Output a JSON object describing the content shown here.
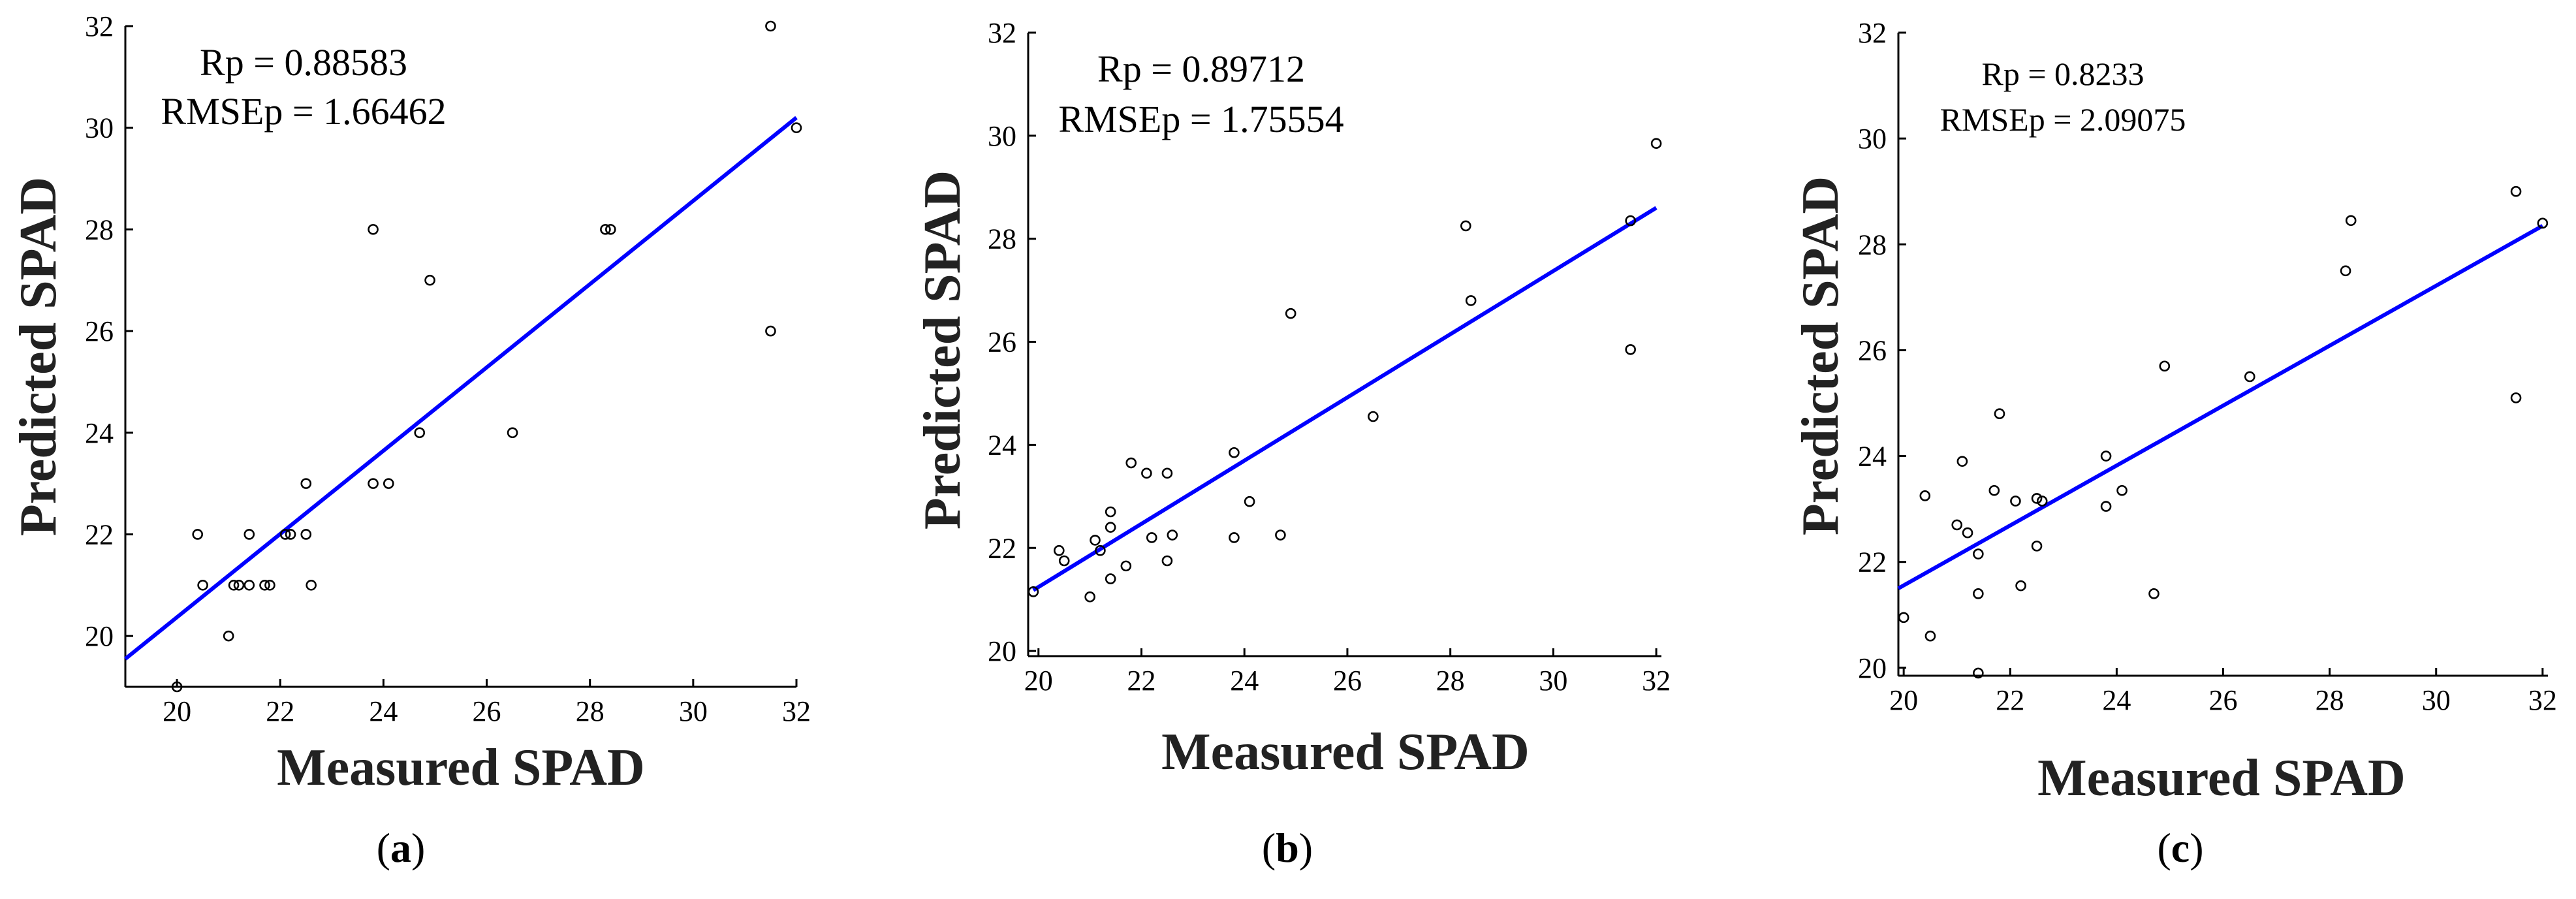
{
  "chart_data": [
    {
      "type": "scatter",
      "panel_label": {
        "open": "(",
        "letter": "a",
        "close": ")"
      },
      "xlabel": "Measured SPAD",
      "ylabel": "Predicted SPAD",
      "xlim": [
        19,
        32
      ],
      "ylim": [
        19,
        32
      ],
      "xticks": [
        20,
        22,
        24,
        26,
        28,
        30,
        32
      ],
      "yticks": [
        20,
        22,
        24,
        26,
        28,
        30,
        32
      ],
      "annotations": {
        "rp": "Rp = 0.88583",
        "rmse": "RMSEp = 1.66462"
      },
      "fit_line": {
        "x": [
          19,
          32
        ],
        "y": [
          19.55,
          30.2
        ],
        "color": "#0000ff"
      },
      "points": [
        [
          20.0,
          19.0
        ],
        [
          20.4,
          22.0
        ],
        [
          20.5,
          21.0
        ],
        [
          21.0,
          20.0
        ],
        [
          21.1,
          21.0
        ],
        [
          21.2,
          21.0
        ],
        [
          21.4,
          21.0
        ],
        [
          21.4,
          22.0
        ],
        [
          21.7,
          21.0
        ],
        [
          21.8,
          21.0
        ],
        [
          22.1,
          22.0
        ],
        [
          22.2,
          22.0
        ],
        [
          22.5,
          22.0
        ],
        [
          22.5,
          23.0
        ],
        [
          22.6,
          21.0
        ],
        [
          23.8,
          28.0
        ],
        [
          23.8,
          23.0
        ],
        [
          24.1,
          23.0
        ],
        [
          24.7,
          24.0
        ],
        [
          24.9,
          27.0
        ],
        [
          26.5,
          24.0
        ],
        [
          28.3,
          28.0
        ],
        [
          28.4,
          28.0
        ],
        [
          31.5,
          32.0
        ],
        [
          31.5,
          26.0
        ],
        [
          32.0,
          30.0
        ]
      ]
    },
    {
      "type": "scatter",
      "panel_label": {
        "open": "(",
        "letter": "b",
        "close": ")"
      },
      "xlabel": "Measured SPAD",
      "ylabel": "Predicted SPAD",
      "xlim": [
        19.8,
        32.1
      ],
      "ylim": [
        19.9,
        32
      ],
      "xticks": [
        20,
        22,
        24,
        26,
        28,
        30,
        32
      ],
      "yticks": [
        20,
        22,
        24,
        26,
        28,
        30,
        32
      ],
      "annotations": {
        "rp": "Rp = 0.89712",
        "rmse": "RMSEp = 1.75554"
      },
      "fit_line": {
        "x": [
          19.9,
          32.0
        ],
        "y": [
          21.18,
          28.6
        ],
        "color": "#0000ff"
      },
      "points": [
        [
          19.9,
          21.15
        ],
        [
          20.4,
          21.95
        ],
        [
          20.5,
          21.75
        ],
        [
          21.0,
          21.05
        ],
        [
          21.1,
          22.15
        ],
        [
          21.2,
          21.95
        ],
        [
          21.4,
          21.4
        ],
        [
          21.4,
          22.4
        ],
        [
          21.4,
          22.7
        ],
        [
          21.7,
          21.65
        ],
        [
          21.8,
          23.65
        ],
        [
          22.1,
          23.45
        ],
        [
          22.2,
          22.2
        ],
        [
          22.5,
          21.75
        ],
        [
          22.5,
          23.45
        ],
        [
          22.6,
          22.25
        ],
        [
          23.8,
          23.85
        ],
        [
          23.8,
          22.2
        ],
        [
          24.1,
          22.9
        ],
        [
          24.7,
          22.25
        ],
        [
          24.9,
          26.55
        ],
        [
          26.5,
          24.55
        ],
        [
          28.3,
          28.25
        ],
        [
          28.4,
          26.8
        ],
        [
          31.5,
          28.35
        ],
        [
          31.5,
          25.85
        ],
        [
          32.0,
          29.85
        ]
      ]
    },
    {
      "type": "scatter",
      "panel_label": {
        "open": "(",
        "letter": "c",
        "close": ")"
      },
      "xlabel": "Measured SPAD",
      "ylabel": "Predicted SPAD",
      "xlim": [
        19.9,
        32.1
      ],
      "ylim": [
        19.85,
        32
      ],
      "xticks": [
        20,
        22,
        24,
        26,
        28,
        30,
        32
      ],
      "yticks": [
        20,
        22,
        24,
        26,
        28,
        30,
        32
      ],
      "annotations": {
        "rp": "Rp = 0.8233",
        "rmse": "RMSEp = 2.09075"
      },
      "fit_line": {
        "x": [
          19.9,
          32.0
        ],
        "y": [
          21.5,
          28.35
        ],
        "color": "#0000ff"
      },
      "points": [
        [
          20.0,
          20.95
        ],
        [
          20.4,
          23.25
        ],
        [
          20.5,
          20.6
        ],
        [
          21.0,
          22.7
        ],
        [
          21.1,
          23.9
        ],
        [
          21.2,
          22.55
        ],
        [
          21.4,
          19.9
        ],
        [
          21.4,
          21.4
        ],
        [
          21.4,
          22.15
        ],
        [
          21.7,
          23.35
        ],
        [
          21.8,
          24.8
        ],
        [
          22.1,
          23.15
        ],
        [
          22.2,
          21.55
        ],
        [
          22.5,
          22.3
        ],
        [
          22.5,
          23.2
        ],
        [
          22.6,
          23.15
        ],
        [
          23.8,
          24.0
        ],
        [
          23.8,
          23.05
        ],
        [
          24.1,
          23.35
        ],
        [
          24.7,
          21.4
        ],
        [
          24.9,
          25.7
        ],
        [
          26.5,
          25.5
        ],
        [
          28.3,
          27.5
        ],
        [
          28.4,
          28.45
        ],
        [
          31.5,
          29.0
        ],
        [
          31.5,
          25.1
        ],
        [
          32.0,
          28.4
        ]
      ]
    }
  ]
}
